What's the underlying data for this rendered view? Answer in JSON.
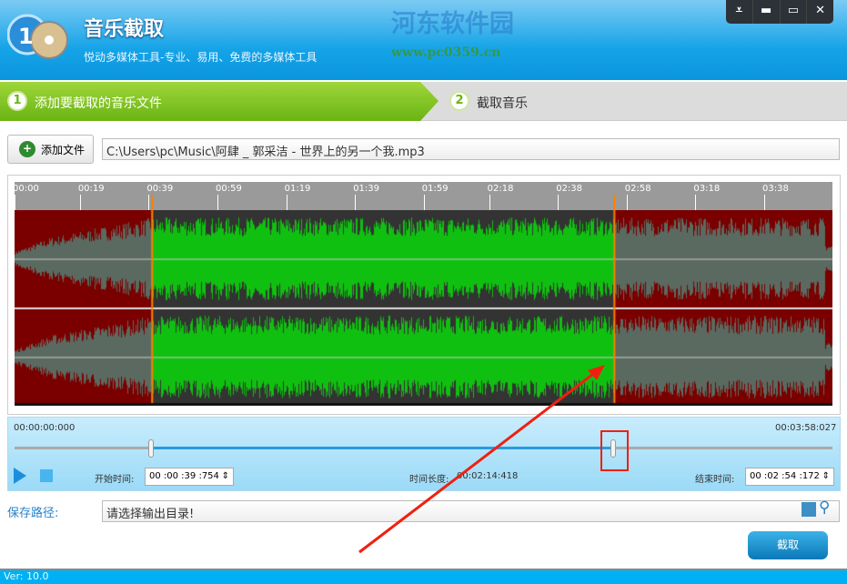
{
  "header": {
    "title": "音乐截取",
    "subtitle": "悦动多媒体工具-专业、易用、免费的多媒体工具",
    "watermark_name": "河东软件园",
    "watermark_url": "www.pc0359.cn"
  },
  "window_buttons": [
    {
      "icon": "menu-icon",
      "glyph": "⩡"
    },
    {
      "icon": "minimize-icon",
      "glyph": "▬"
    },
    {
      "icon": "maximize-icon",
      "glyph": "▭"
    },
    {
      "icon": "close-icon",
      "glyph": "✕"
    }
  ],
  "steps": [
    {
      "num": "1",
      "label": "添加要截取的音乐文件",
      "active": true
    },
    {
      "num": "2",
      "label": "截取音乐",
      "active": false
    }
  ],
  "file": {
    "add_label": "添加文件",
    "path": "C:\\Users\\pc\\Music\\阿肆 _ 郭采洁 - 世界上的另一个我.mp3"
  },
  "ruler_ticks": [
    "00:00",
    "00:19",
    "00:39",
    "00:59",
    "01:19",
    "01:39",
    "01:59",
    "02:18",
    "02:38",
    "02:58",
    "03:18",
    "03:38"
  ],
  "colors": {
    "selected_wave": "#10c010",
    "unselected_wave": "#5a6a60",
    "unselected_bg": "#7a0000",
    "selected_bg": "#333333",
    "marker": "#ff8000"
  },
  "timeline": {
    "start": "00:00:00:000",
    "end": "00:03:58:027",
    "total_seconds": 238.027,
    "sel_start_seconds": 39.754,
    "sel_end_seconds": 174.172
  },
  "controls": {
    "start_label": "开始时间:",
    "start_value": "00 :00 :39 :754",
    "duration_label": "时间长度:",
    "duration_value": "00:02:14:418",
    "end_label": "结束时间:",
    "end_value": "00 :02 :54 :172"
  },
  "save": {
    "label": "保存路径:",
    "placeholder": "请选择输出目录!"
  },
  "cut_label": "截取",
  "version": "Ver: 10.0"
}
